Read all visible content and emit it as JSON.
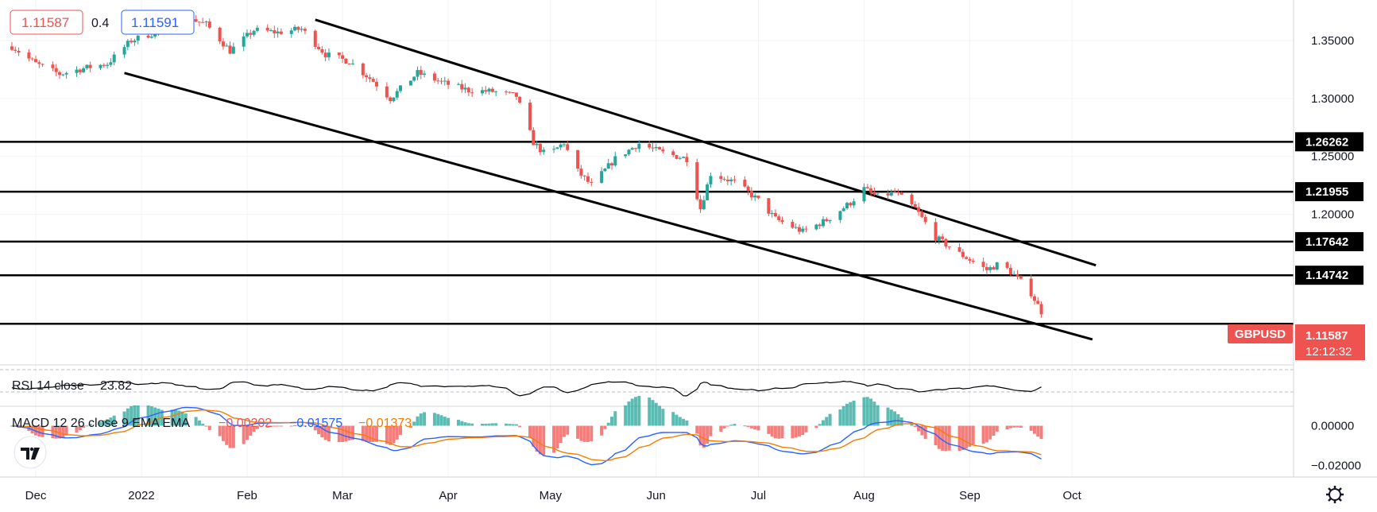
{
  "header": {
    "bid": "1.11587",
    "spread": "0.4",
    "ask": "1.11591"
  },
  "symbol": "GBPUSD",
  "last_price": "1.11587",
  "countdown": "12:12:32",
  "rsi": {
    "label": "RSI 14 close",
    "value": "23.82"
  },
  "macd": {
    "label": "MACD 12 26 close 9 EMA EMA",
    "histogram_value": "−0.00202",
    "macd_value": "−0.01575",
    "signal_value": "−0.01373"
  },
  "colors": {
    "up": "#26a69a",
    "down": "#ef5350",
    "trendline": "#000000",
    "macd_line": "#2962ff",
    "signal_line": "#f57c00",
    "price_tag_bg": "#ef5350"
  },
  "chart_data": {
    "type": "candlestick",
    "symbol": "GBPUSD",
    "x_tick_labels": [
      "Dec",
      "2022",
      "Feb",
      "Mar",
      "Apr",
      "May",
      "Jun",
      "Jul",
      "Aug",
      "Sep",
      "Oct"
    ],
    "y_tick_labels": [
      "1.35000",
      "1.30000",
      "1.25000",
      "1.20000"
    ],
    "ylim": [
      1.07,
      1.385
    ],
    "grid": true,
    "horizontal_levels": [
      1.26262,
      1.21955,
      1.17642,
      1.14742,
      1.1055
    ],
    "horizontal_level_labels": [
      "1.26262",
      "1.21955",
      "1.17642",
      "1.14742"
    ],
    "channel": {
      "upper": {
        "start": [
          "2022-02-21",
          1.368
        ],
        "end": [
          "2022-10-08",
          1.156
        ]
      },
      "lower": {
        "start": [
          "2021-12-27",
          1.322
        ],
        "end": [
          "2022-10-07",
          1.092
        ]
      }
    },
    "close_path": [
      [
        "2021-11-24",
        1.345
      ],
      [
        "2021-12-01",
        1.33
      ],
      [
        "2021-12-08",
        1.321
      ],
      [
        "2021-12-15",
        1.326
      ],
      [
        "2021-12-22",
        1.33
      ],
      [
        "2021-12-29",
        1.35
      ],
      [
        "2022-01-05",
        1.357
      ],
      [
        "2022-01-13",
        1.371
      ],
      [
        "2022-01-20",
        1.364
      ],
      [
        "2022-01-27",
        1.341
      ],
      [
        "2022-02-03",
        1.359
      ],
      [
        "2022-02-10",
        1.357
      ],
      [
        "2022-02-17",
        1.36
      ],
      [
        "2022-02-24",
        1.338
      ],
      [
        "2022-03-03",
        1.332
      ],
      [
        "2022-03-10",
        1.315
      ],
      [
        "2022-03-15",
        1.3
      ],
      [
        "2022-03-23",
        1.322
      ],
      [
        "2022-03-31",
        1.313
      ],
      [
        "2022-04-07",
        1.307
      ],
      [
        "2022-04-14",
        1.306
      ],
      [
        "2022-04-21",
        1.302
      ],
      [
        "2022-04-26",
        1.262
      ],
      [
        "2022-04-30",
        1.25
      ],
      [
        "2022-05-05",
        1.262
      ],
      [
        "2022-05-08",
        1.24
      ],
      [
        "2022-05-13",
        1.225
      ],
      [
        "2022-05-20",
        1.248
      ],
      [
        "2022-05-27",
        1.261
      ],
      [
        "2022-06-03",
        1.253
      ],
      [
        "2022-06-10",
        1.248
      ],
      [
        "2022-06-14",
        1.205
      ],
      [
        "2022-06-17",
        1.235
      ],
      [
        "2022-06-24",
        1.228
      ],
      [
        "2022-07-01",
        1.212
      ],
      [
        "2022-07-06",
        1.196
      ],
      [
        "2022-07-14",
        1.185
      ],
      [
        "2022-07-21",
        1.195
      ],
      [
        "2022-07-28",
        1.21
      ],
      [
        "2022-08-01",
        1.222
      ],
      [
        "2022-08-05",
        1.215
      ],
      [
        "2022-08-10",
        1.219
      ],
      [
        "2022-08-16",
        1.205
      ],
      [
        "2022-08-22",
        1.18
      ],
      [
        "2022-08-29",
        1.166
      ],
      [
        "2022-09-06",
        1.152
      ],
      [
        "2022-09-10",
        1.158
      ],
      [
        "2022-09-15",
        1.145
      ],
      [
        "2022-09-19",
        1.132
      ],
      [
        "2022-09-22",
        1.116
      ]
    ],
    "rsi_latest": 23.82,
    "macd_latest": {
      "histogram": -0.00202,
      "macd": -0.01575,
      "signal": -0.01373
    },
    "macd_y_tick_labels": [
      "0.00000",
      "−0.02000"
    ],
    "macd_ylim": [
      -0.025,
      0.009
    ]
  }
}
